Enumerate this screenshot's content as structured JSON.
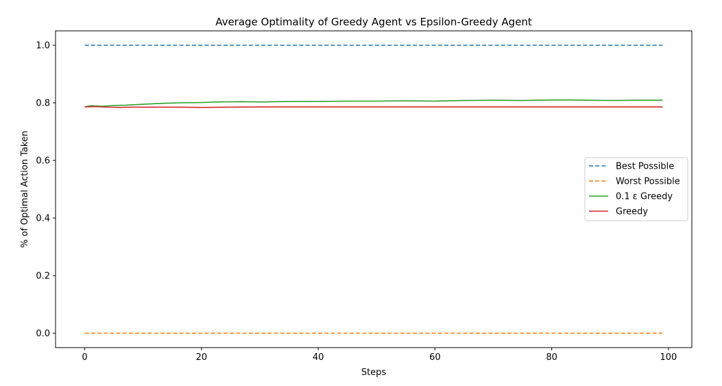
{
  "chart_data": {
    "type": "line",
    "title": "Average Optimality of Greedy Agent vs Epsilon-Greedy Agent",
    "xlabel": "Steps",
    "ylabel": "% of Optimal Action Taken",
    "xlim": [
      -5,
      104
    ],
    "ylim": [
      -0.05,
      1.05
    ],
    "xticks": [
      0,
      20,
      40,
      60,
      80,
      100
    ],
    "xtick_labels": [
      "0",
      "20",
      "40",
      "60",
      "80",
      "100"
    ],
    "yticks": [
      0.0,
      0.2,
      0.4,
      0.6,
      0.8,
      1.0
    ],
    "ytick_labels": [
      "0.0",
      "0.2",
      "0.4",
      "0.6",
      "0.8",
      "1.0"
    ],
    "grid": false,
    "legend_position": "center-right",
    "series": [
      {
        "name": "Best Possible",
        "color": "#1f77b4",
        "style": "dashed",
        "x": [
          0,
          99
        ],
        "y": [
          1.0,
          1.0
        ]
      },
      {
        "name": "Worst Possible",
        "color": "#ff7f0e",
        "style": "dashed",
        "x": [
          0,
          99
        ],
        "y": [
          0.0,
          0.0
        ]
      },
      {
        "name": "0.1 ε Greedy",
        "color": "#2ca02c",
        "style": "solid",
        "x": [
          0,
          1,
          3,
          5,
          7,
          10,
          13,
          16,
          20,
          23,
          27,
          30,
          33,
          36,
          40,
          45,
          50,
          55,
          60,
          62,
          65,
          70,
          75,
          80,
          83,
          86,
          90,
          95,
          99
        ],
        "y": [
          0.786,
          0.79,
          0.788,
          0.791,
          0.792,
          0.795,
          0.798,
          0.8,
          0.801,
          0.803,
          0.804,
          0.803,
          0.804,
          0.805,
          0.805,
          0.806,
          0.806,
          0.807,
          0.806,
          0.807,
          0.808,
          0.809,
          0.808,
          0.81,
          0.81,
          0.809,
          0.808,
          0.809,
          0.809
        ]
      },
      {
        "name": "Greedy",
        "color": "#d62728",
        "style": "solid",
        "x": [
          0,
          2,
          4,
          6,
          8,
          10,
          15,
          20,
          25,
          30,
          35,
          40,
          45,
          50,
          55,
          60,
          65,
          70,
          75,
          80,
          85,
          90,
          95,
          99
        ],
        "y": [
          0.786,
          0.787,
          0.785,
          0.784,
          0.785,
          0.785,
          0.785,
          0.784,
          0.785,
          0.786,
          0.786,
          0.786,
          0.786,
          0.786,
          0.786,
          0.786,
          0.786,
          0.786,
          0.786,
          0.786,
          0.786,
          0.786,
          0.786,
          0.786
        ]
      }
    ]
  }
}
